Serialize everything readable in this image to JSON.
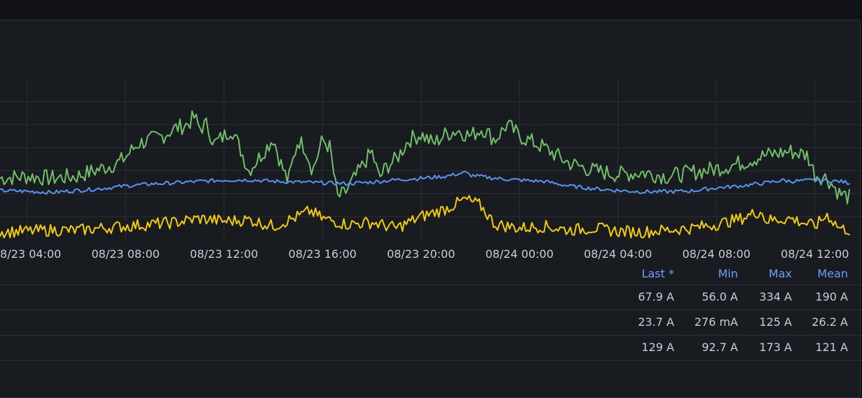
{
  "chart_data": {
    "type": "line",
    "x_ticks": [
      "08/23 04:00",
      "08/23 08:00",
      "08/23 12:00",
      "08/23 16:00",
      "08/23 20:00",
      "08/24 00:00",
      "08/24 04:00",
      "08/24 08:00",
      "08/24 12:00"
    ],
    "x_range_hours": [
      -1.1,
      33.4
    ],
    "x_tick_hours": [
      0,
      4,
      8,
      12,
      16,
      20,
      24,
      28,
      32
    ],
    "y_range": [
      0,
      420
    ],
    "y_grid_values": [
      60,
      120,
      180,
      240,
      300,
      360
    ],
    "grid": true,
    "colors": {
      "green": "#73bf69",
      "blue": "#5794f2",
      "yellow": "#f2cc0c"
    },
    "series": [
      {
        "key": "green",
        "color": "#73bf69",
        "values": [
          [
            -1.1,
            160
          ],
          [
            0,
            165
          ],
          [
            1,
            160
          ],
          [
            2,
            165
          ],
          [
            3,
            185
          ],
          [
            3.7,
            200
          ],
          [
            4,
            215
          ],
          [
            4.5,
            250
          ],
          [
            5,
            260
          ],
          [
            5.5,
            270
          ],
          [
            6,
            290
          ],
          [
            6.5,
            300
          ],
          [
            6.8,
            320
          ],
          [
            7,
            290
          ],
          [
            7.3,
            300
          ],
          [
            7.6,
            250
          ],
          [
            8,
            270
          ],
          [
            8.3,
            290
          ],
          [
            8.7,
            230
          ],
          [
            9,
            180
          ],
          [
            9.5,
            220
          ],
          [
            10,
            265
          ],
          [
            10.3,
            200
          ],
          [
            10.6,
            150
          ],
          [
            11,
            260
          ],
          [
            11.3,
            240
          ],
          [
            11.6,
            180
          ],
          [
            12,
            260
          ],
          [
            12.3,
            240
          ],
          [
            12.6,
            110
          ],
          [
            12.9,
            120
          ],
          [
            13.2,
            150
          ],
          [
            13.6,
            190
          ],
          [
            14,
            230
          ],
          [
            14.3,
            160
          ],
          [
            14.6,
            190
          ],
          [
            15,
            210
          ],
          [
            15.5,
            260
          ],
          [
            16,
            275
          ],
          [
            16.5,
            250
          ],
          [
            17,
            275
          ],
          [
            17.5,
            285
          ],
          [
            18,
            270
          ],
          [
            18.5,
            290
          ],
          [
            19,
            260
          ],
          [
            19.5,
            300
          ],
          [
            20,
            270
          ],
          [
            21,
            240
          ],
          [
            22,
            200
          ],
          [
            23,
            180
          ],
          [
            24,
            170
          ],
          [
            25,
            175
          ],
          [
            26,
            165
          ],
          [
            27,
            175
          ],
          [
            28,
            185
          ],
          [
            29,
            200
          ],
          [
            30,
            220
          ],
          [
            31,
            230
          ],
          [
            31.7,
            220
          ],
          [
            32,
            170
          ],
          [
            32.5,
            160
          ],
          [
            33,
            120
          ],
          [
            33.4,
            110
          ]
        ]
      },
      {
        "key": "blue",
        "color": "#5794f2",
        "values": [
          [
            -1.1,
            128
          ],
          [
            0,
            126
          ],
          [
            1,
            123
          ],
          [
            2,
            128
          ],
          [
            3,
            133
          ],
          [
            4,
            140
          ],
          [
            5,
            145
          ],
          [
            6,
            148
          ],
          [
            7,
            152
          ],
          [
            8,
            155
          ],
          [
            9,
            156
          ],
          [
            10,
            152
          ],
          [
            11,
            150
          ],
          [
            12,
            148
          ],
          [
            13,
            146
          ],
          [
            14,
            150
          ],
          [
            15,
            156
          ],
          [
            16,
            160
          ],
          [
            17,
            165
          ],
          [
            17.8,
            175
          ],
          [
            18,
            168
          ],
          [
            19,
            160
          ],
          [
            20,
            155
          ],
          [
            21,
            152
          ],
          [
            22,
            140
          ],
          [
            23,
            133
          ],
          [
            24,
            128
          ],
          [
            25,
            125
          ],
          [
            26,
            125
          ],
          [
            27,
            127
          ],
          [
            28,
            135
          ],
          [
            29,
            140
          ],
          [
            30,
            148
          ],
          [
            30.7,
            155
          ],
          [
            31,
            152
          ],
          [
            32,
            155
          ],
          [
            33,
            152
          ],
          [
            33.4,
            148
          ]
        ]
      },
      {
        "key": "yellow",
        "color": "#f2cc0c",
        "values": [
          [
            -1.1,
            20
          ],
          [
            0,
            22
          ],
          [
            1,
            25
          ],
          [
            2,
            24
          ],
          [
            3,
            30
          ],
          [
            4,
            35
          ],
          [
            5,
            40
          ],
          [
            6,
            45
          ],
          [
            7,
            55
          ],
          [
            8,
            48
          ],
          [
            9,
            52
          ],
          [
            10,
            35
          ],
          [
            11,
            60
          ],
          [
            11.5,
            75
          ],
          [
            12,
            55
          ],
          [
            13,
            40
          ],
          [
            14,
            45
          ],
          [
            15,
            30
          ],
          [
            16,
            60
          ],
          [
            17,
            80
          ],
          [
            17.8,
            105
          ],
          [
            18.4,
            90
          ],
          [
            19,
            40
          ],
          [
            20,
            30
          ],
          [
            21,
            35
          ],
          [
            22,
            25
          ],
          [
            23,
            30
          ],
          [
            24,
            22
          ],
          [
            25,
            20
          ],
          [
            26,
            25
          ],
          [
            27,
            30
          ],
          [
            28,
            40
          ],
          [
            29,
            55
          ],
          [
            29.8,
            75
          ],
          [
            30,
            50
          ],
          [
            31,
            55
          ],
          [
            32,
            35
          ],
          [
            32.5,
            65
          ],
          [
            33,
            30
          ],
          [
            33.4,
            25
          ]
        ]
      }
    ],
    "legend": {
      "headers": [
        "Last *",
        "Min",
        "Max",
        "Mean"
      ],
      "rows": [
        [
          "67.9 A",
          "56.0 A",
          "334 A",
          "190 A"
        ],
        [
          "23.7 A",
          "276 mA",
          "125 A",
          "26.2 A"
        ],
        [
          "129 A",
          "92.7 A",
          "173 A",
          "121 A"
        ]
      ]
    }
  }
}
